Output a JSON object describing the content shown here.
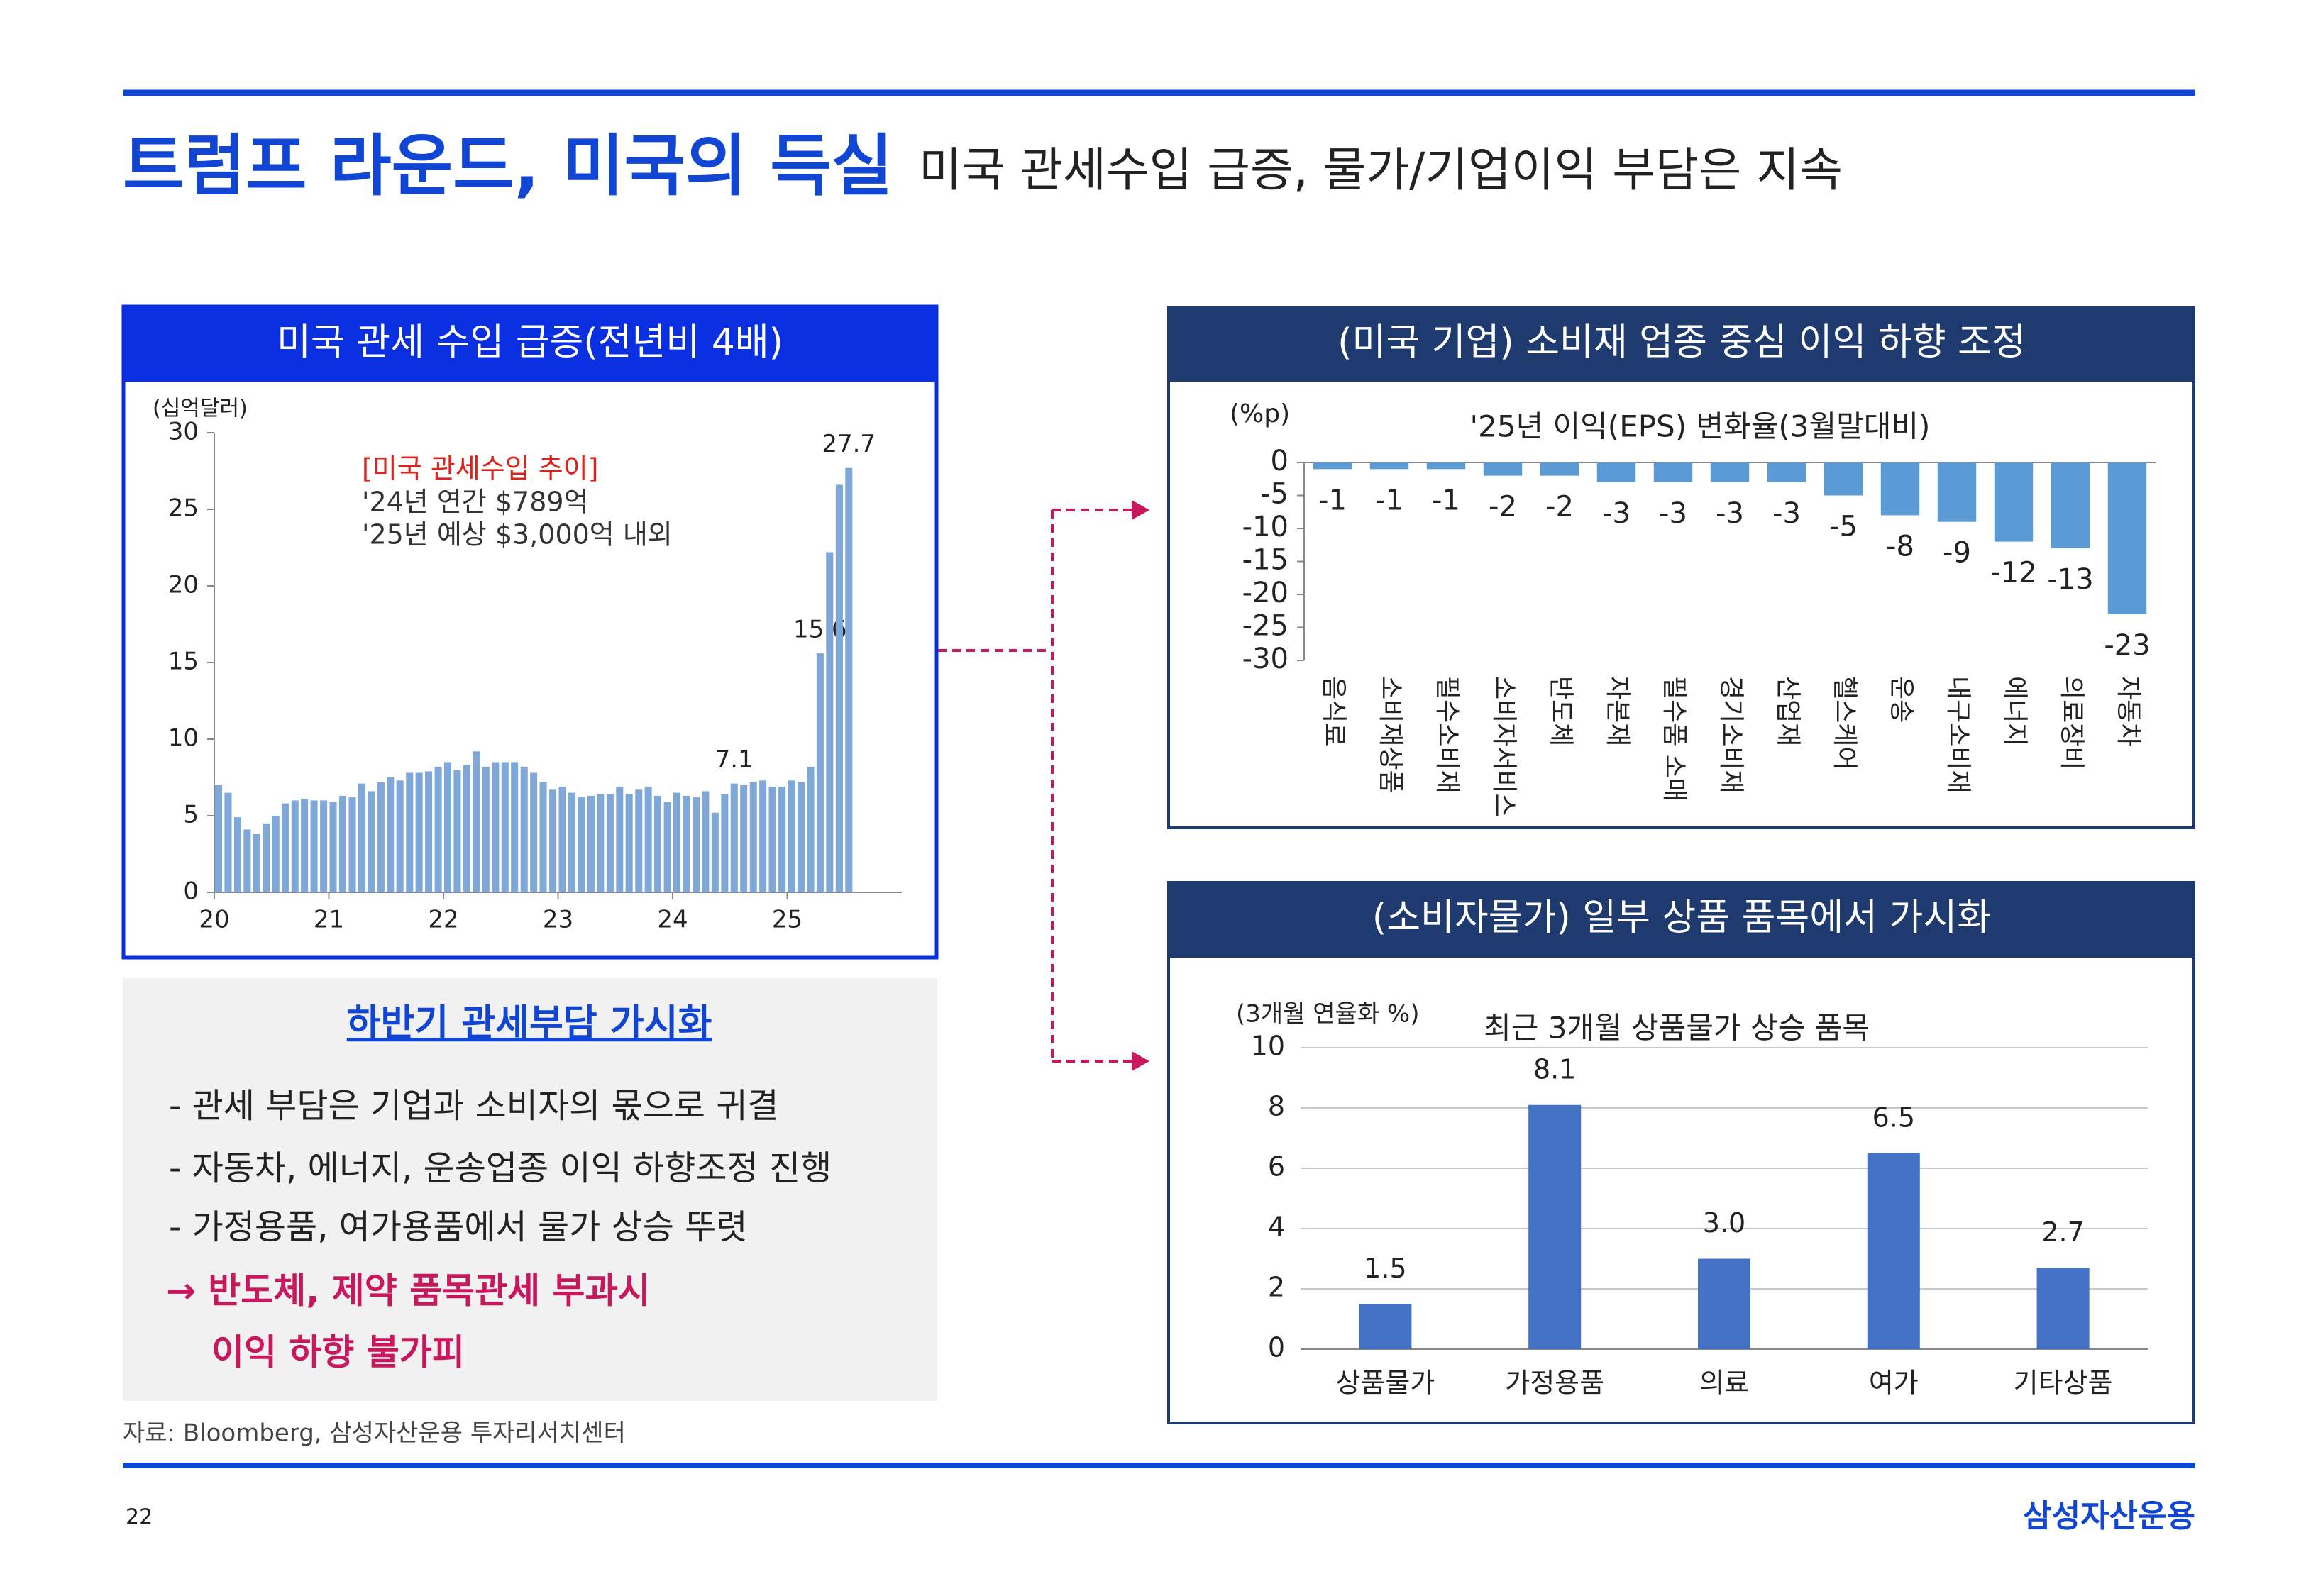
{
  "header": {
    "title": "트럼프 라운드, 미국의 득실",
    "subtitle": "미국 관세수입 급증, 물가/기업이익 부담은 지속"
  },
  "chart_data": [
    {
      "type": "bar",
      "panel_title": "미국 관세 수입 급증(전년비 4배)",
      "y_label": "(십억달러)",
      "annotations": [
        "[미국 관세수입 추이]",
        "'24년 연간 $789억",
        "'25년 예상 $3,000억 내외"
      ],
      "color": "#7fa8d9",
      "x": [
        20,
        20.083,
        20.167,
        20.25,
        20.333,
        20.417,
        20.5,
        20.583,
        20.667,
        20.75,
        20.833,
        20.917,
        21,
        21.083,
        21.167,
        21.25,
        21.333,
        21.417,
        21.5,
        21.583,
        21.667,
        21.75,
        21.833,
        21.917,
        22,
        22.083,
        22.167,
        22.25,
        22.333,
        22.417,
        22.5,
        22.583,
        22.667,
        22.75,
        22.833,
        22.917,
        23,
        23.083,
        23.167,
        23.25,
        23.333,
        23.417,
        23.5,
        23.583,
        23.667,
        23.75,
        23.833,
        23.917,
        24,
        24.083,
        24.167,
        24.25,
        24.333,
        24.417,
        24.5,
        24.583,
        24.667,
        24.75,
        24.833,
        24.917,
        25,
        25.083,
        25.167,
        25.25,
        25.333,
        25.417,
        25.5
      ],
      "values": [
        7.0,
        6.5,
        4.9,
        4.1,
        3.8,
        4.5,
        5.0,
        5.8,
        6.0,
        6.1,
        6.0,
        6.0,
        5.9,
        6.3,
        6.2,
        7.1,
        6.6,
        7.2,
        7.5,
        7.3,
        7.8,
        7.8,
        7.9,
        8.2,
        8.5,
        8.0,
        8.3,
        9.2,
        8.2,
        8.5,
        8.5,
        8.5,
        8.2,
        7.8,
        7.2,
        6.7,
        6.9,
        6.5,
        6.2,
        6.3,
        6.4,
        6.4,
        6.9,
        6.4,
        6.7,
        6.9,
        6.3,
        5.9,
        6.5,
        6.3,
        6.2,
        6.6,
        5.2,
        6.4,
        7.1,
        7.0,
        7.2,
        7.3,
        6.9,
        6.9,
        7.3,
        7.2,
        8.2,
        15.6,
        22.2,
        26.6,
        27.7
      ],
      "value_labels": [
        null,
        null,
        null,
        null,
        null,
        null,
        null,
        null,
        null,
        null,
        null,
        null,
        null,
        null,
        null,
        null,
        null,
        null,
        null,
        null,
        null,
        null,
        null,
        null,
        null,
        null,
        null,
        null,
        null,
        null,
        null,
        null,
        null,
        null,
        null,
        null,
        null,
        null,
        null,
        null,
        null,
        null,
        null,
        null,
        null,
        null,
        null,
        null,
        null,
        null,
        null,
        null,
        null,
        null,
        "7.1",
        null,
        null,
        null,
        null,
        null,
        null,
        null,
        null,
        "15.6",
        null,
        null,
        "27.7"
      ],
      "xlim": [
        20,
        26
      ],
      "xticks": [
        20,
        21,
        22,
        23,
        24,
        25
      ],
      "ylim": [
        0,
        30
      ],
      "yticks": [
        0,
        5,
        10,
        15,
        20,
        25,
        30
      ],
      "grid": false
    },
    {
      "type": "bar",
      "panel_title": "(미국 기업) 소비재 업종 중심 이익 하향 조정",
      "title": "'25년 이익(EPS) 변화율(3월말대비)",
      "y_label": "(%p)",
      "color": "#5b9bd5",
      "categories": [
        "음식료",
        "소비재상품",
        "필수소비재",
        "소비자서비스",
        "반도체",
        "자본재",
        "필수품 소매",
        "경기소비재",
        "산업재",
        "헬스케어",
        "운송",
        "내구소비재",
        "에너지",
        "의료장비",
        "자동차"
      ],
      "values": [
        -1,
        -1,
        -1,
        -2,
        -2,
        -3,
        -3,
        -3,
        -3,
        -5,
        -8,
        -9,
        -12,
        -13,
        -23
      ],
      "ylim": [
        -30,
        0
      ],
      "yticks": [
        0,
        -5,
        -10,
        -15,
        -20,
        -25,
        -30
      ],
      "grid": false
    },
    {
      "type": "bar",
      "panel_title": "(소비자물가) 일부 상품 품목에서 가시화",
      "title": "최근 3개월 상품물가 상승 품목",
      "y_label": "(3개월 연율화 %)",
      "color": "#4472c4",
      "categories": [
        "상품물가",
        "가정용품",
        "의료",
        "여가",
        "기타상품"
      ],
      "values": [
        1.5,
        8.1,
        3.0,
        6.5,
        2.7
      ],
      "value_labels": [
        "1.5",
        "8.1",
        "3.0",
        "6.5",
        "2.7"
      ],
      "ylim": [
        0,
        10
      ],
      "yticks": [
        0,
        2,
        4,
        6,
        8,
        10
      ],
      "grid": true
    }
  ],
  "summary": {
    "heading": "하반기 관세부담 가시화",
    "bullets": [
      "- 관세 부담은 기업과 소비자의 몫으로 귀결",
      "- 자동차, 에너지, 운송업종 이익 하향조정 진행",
      "- 가정용품, 여가용품에서 물가 상승 뚜렷"
    ],
    "conclusion": [
      "→ 반도체, 제약 품목관세 부과시",
      "이익 하향 불가피"
    ]
  },
  "footer": {
    "source": "자료: Bloomberg, 삼성자산운용 투자리서치센터",
    "page": 22,
    "logo": "삼성자산운용"
  }
}
